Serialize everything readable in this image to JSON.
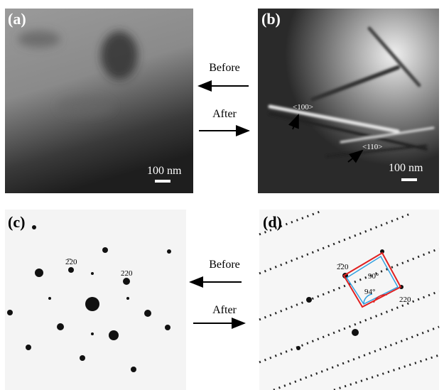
{
  "panels": [
    {
      "label": "(a)",
      "scale_bar": "100 nm"
    },
    {
      "label": "(b)",
      "scale_bar": "100 nm",
      "annotations": [
        "<100>",
        "<110>"
      ]
    },
    {
      "label": "(c)",
      "spot_labels": [
        "2̅20",
        "220"
      ]
    },
    {
      "label": "(d)",
      "spot_labels": [
        "2̅20",
        "220"
      ],
      "angles": [
        "90°",
        "94°"
      ]
    }
  ],
  "arrows": [
    {
      "before": "Before",
      "after": "After"
    },
    {
      "before": "Before",
      "after": "After"
    }
  ]
}
